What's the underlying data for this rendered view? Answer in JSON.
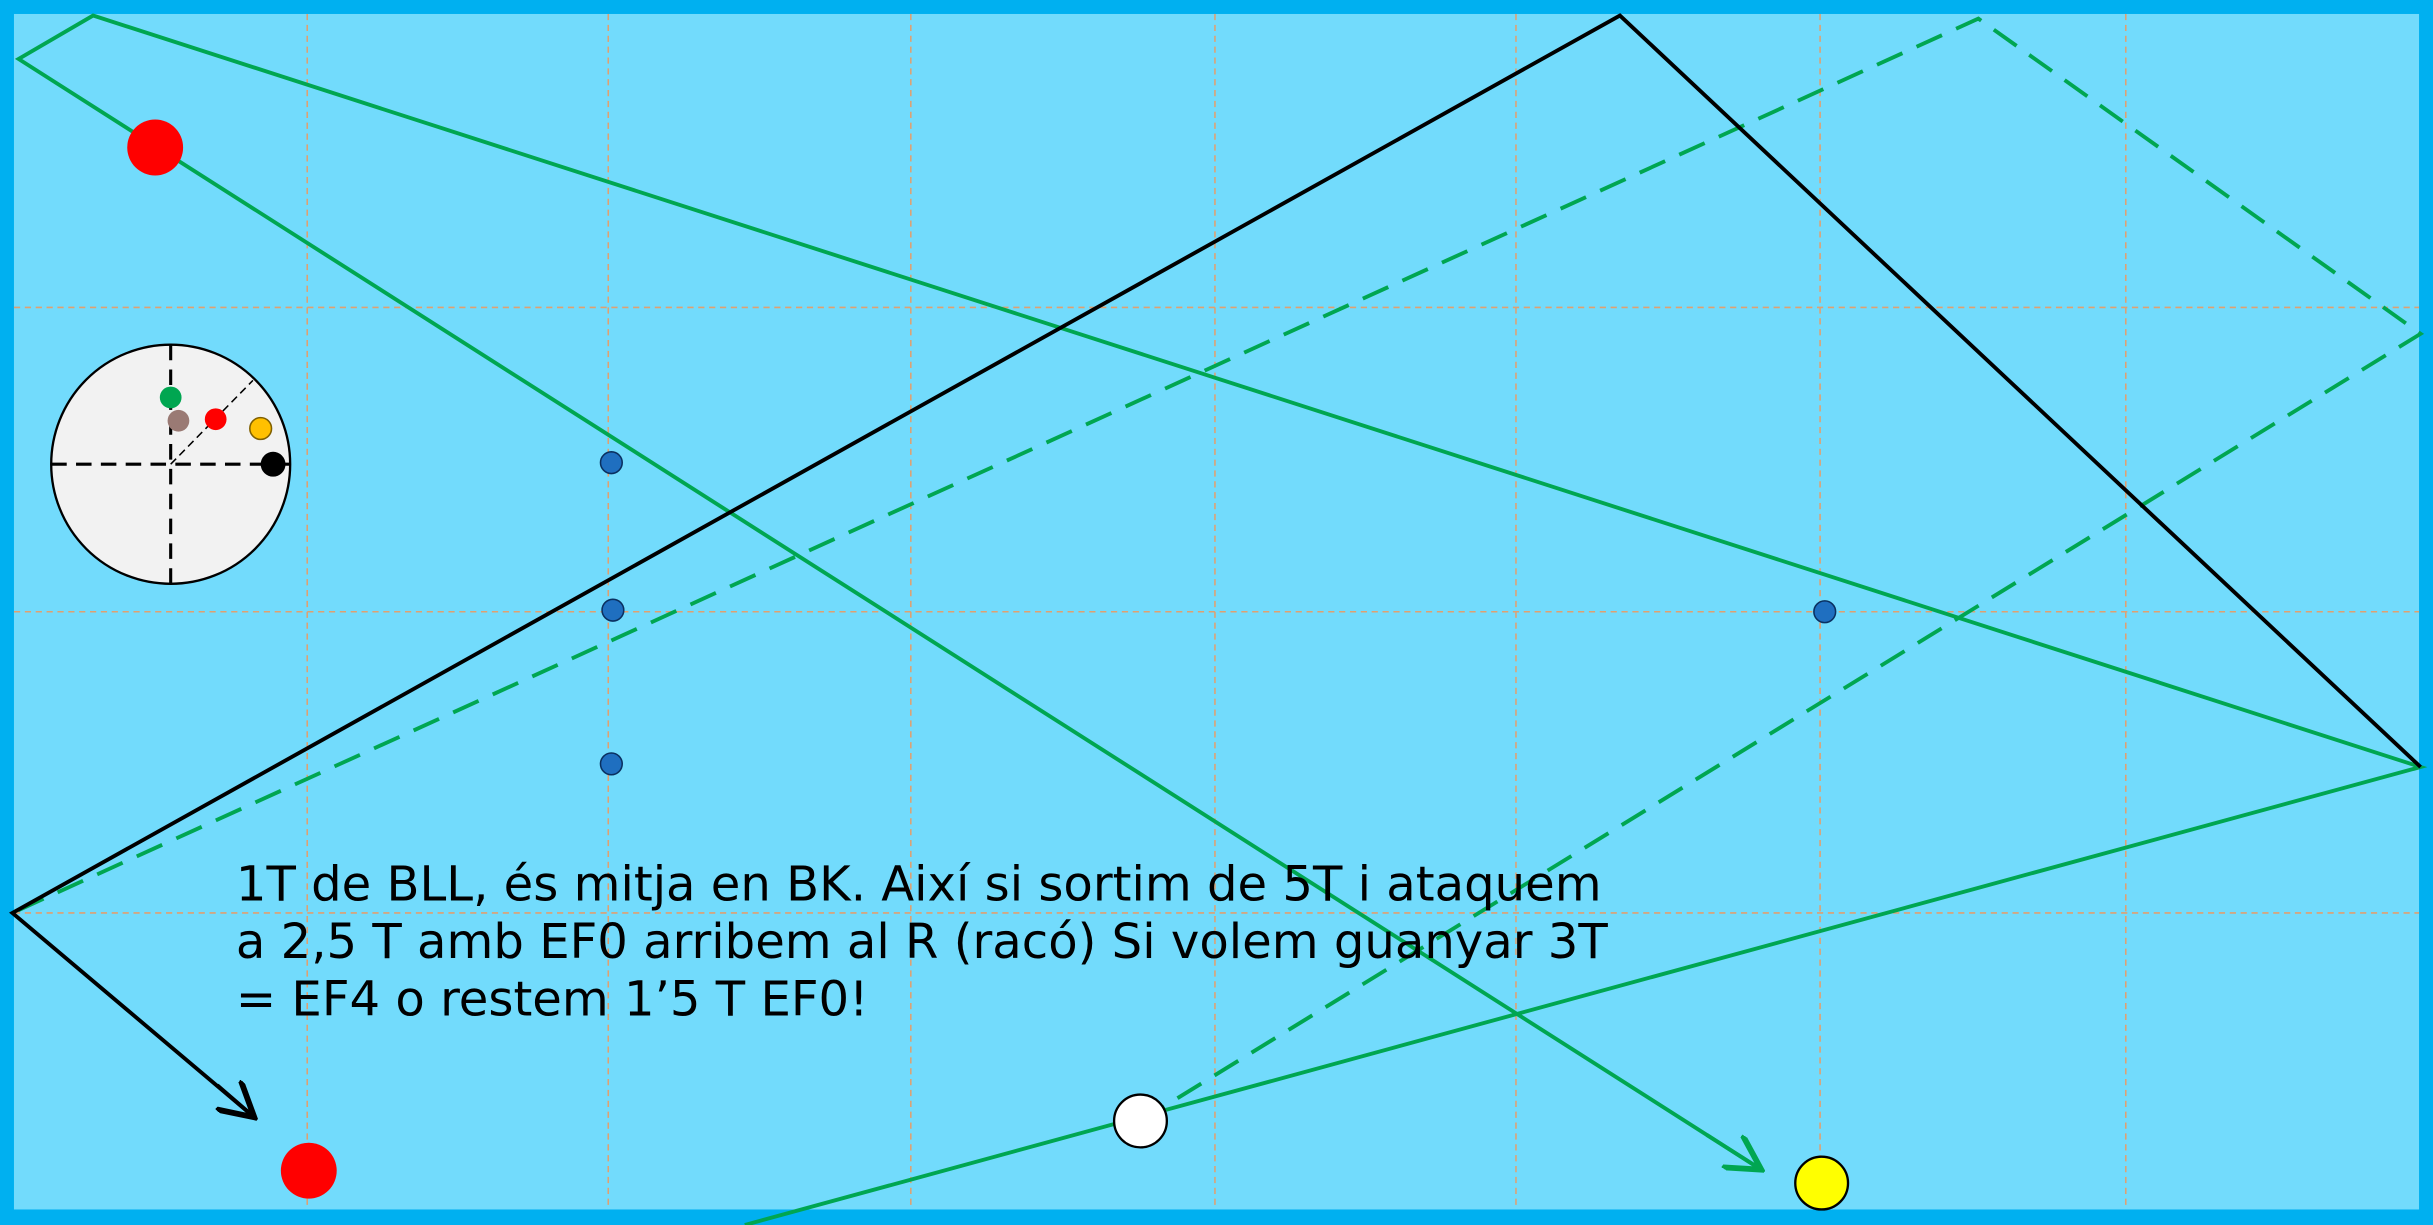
{
  "annotation": {
    "lines": [
      "1T de BLL, és mitja en BK. Així si sortim de 5T i ataquem",
      "a 2,5 T amb EF0 arribem al R (racó) Si volem guanyar 3T",
      "= EF4 o restem 1’5 T EF0!"
    ]
  }
}
